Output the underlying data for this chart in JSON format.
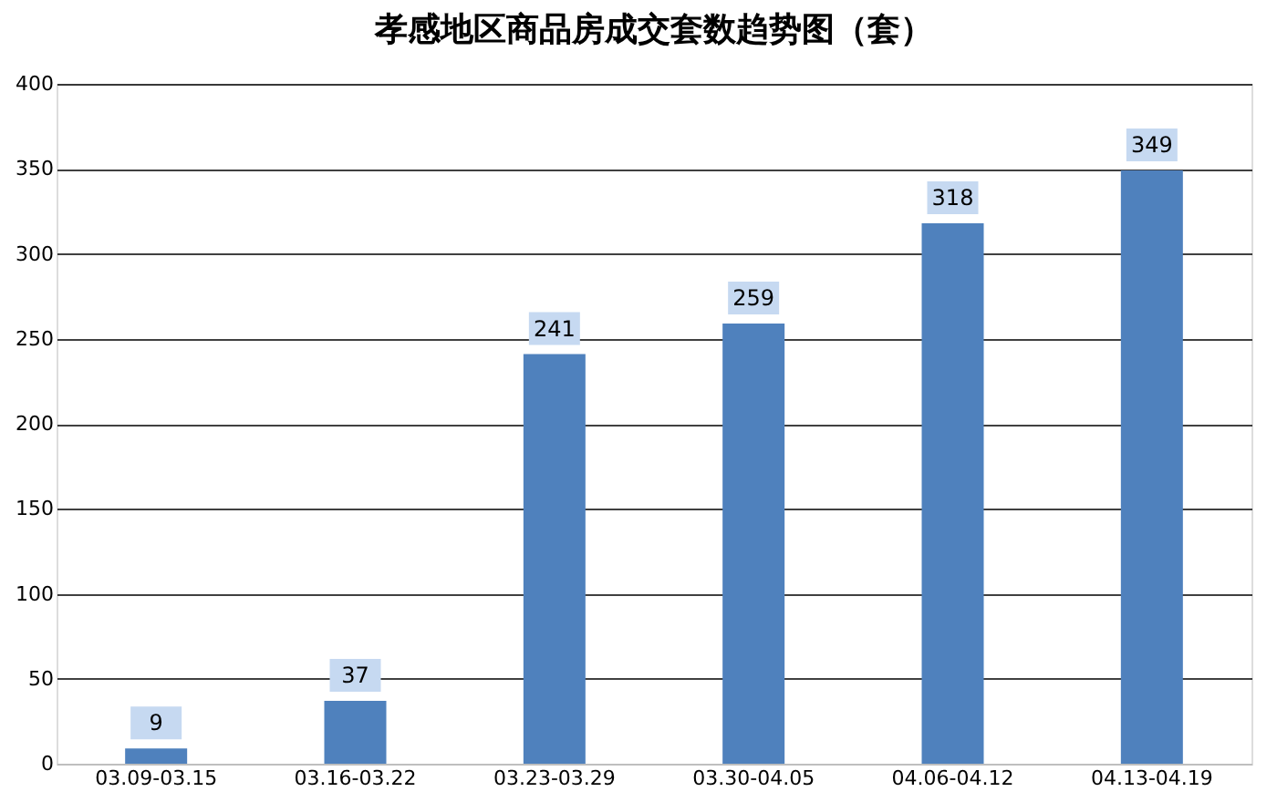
{
  "chart_data": {
    "type": "bar",
    "title": "孝感地区商品房成交套数趋势图（套）",
    "categories": [
      "03.09-03.15",
      "03.16-03.22",
      "03.23-03.29",
      "03.30-04.05",
      "04.06-04.12",
      "04.13-04.19"
    ],
    "values": [
      9,
      37,
      241,
      259,
      318,
      349
    ],
    "color": "#4f81bd",
    "ylim": [
      0,
      400
    ],
    "yticks": [
      0,
      50,
      100,
      150,
      200,
      250,
      300,
      350,
      400
    ],
    "grid": "y",
    "data_labels": true
  }
}
